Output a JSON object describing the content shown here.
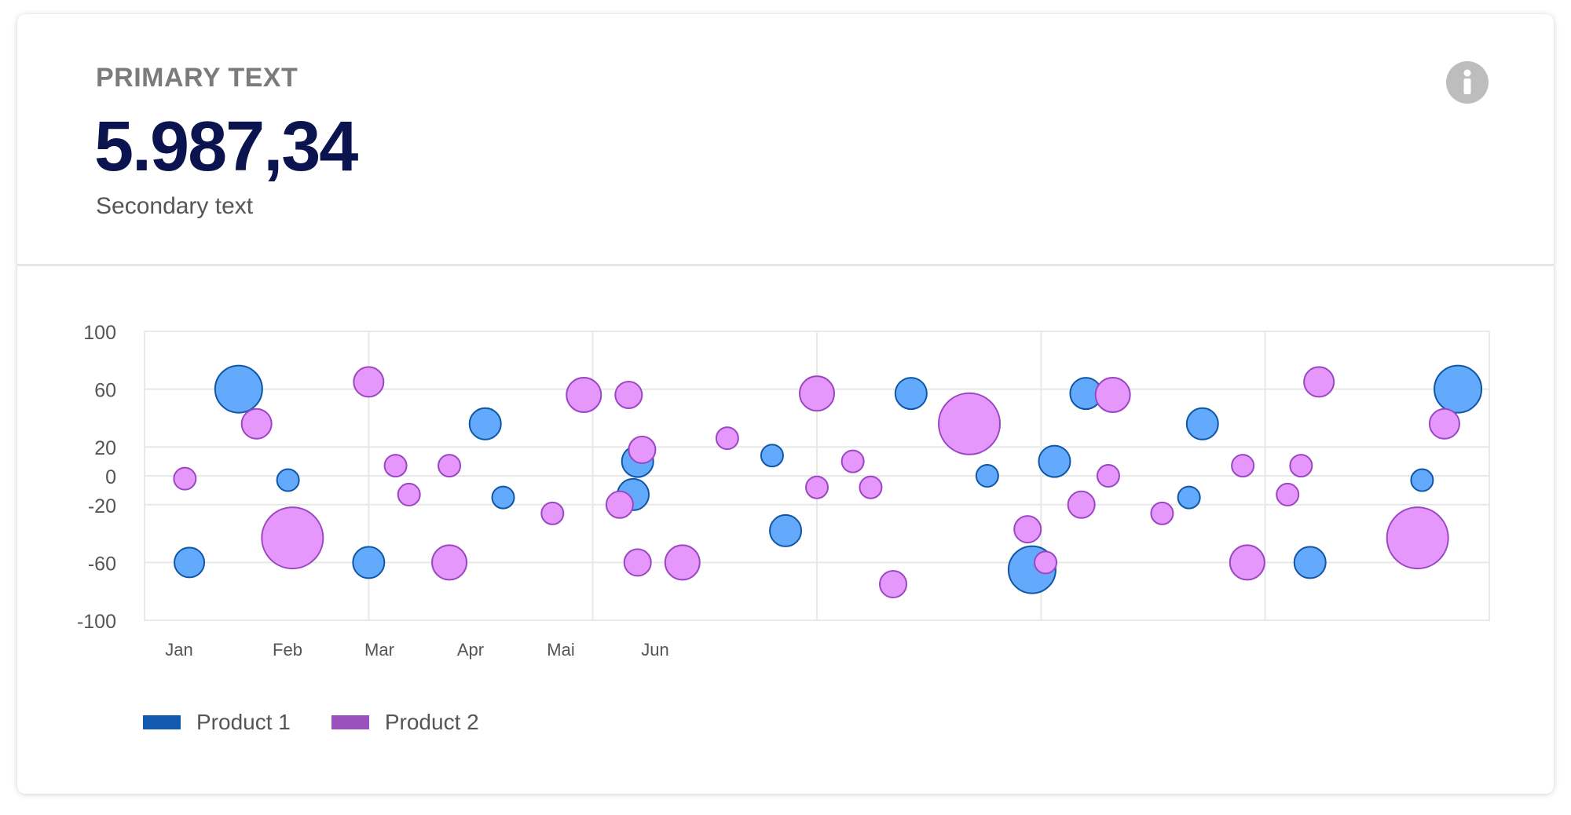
{
  "header": {
    "primary_text": "PRIMARY TEXT",
    "value": "5.987,34",
    "secondary_text": "Secondary text",
    "info_icon": "info-icon"
  },
  "colors": {
    "value_text": "#0c1450",
    "product1_fill": "#64aafc",
    "product1_stroke": "#0f56a6",
    "product1_legend": "#1259b0",
    "product2_fill": "#e597fc",
    "product2_stroke": "#9b47c4",
    "product2_legend": "#9a50bd",
    "grid": "#e8e8e8"
  },
  "chart_data": {
    "type": "scatter",
    "x_tick_labels": [
      "Jan",
      "Feb",
      "Mar",
      "Apr",
      "Mai",
      "Jun"
    ],
    "y_ticks": [
      100,
      60,
      20,
      0,
      -20,
      -60,
      -100
    ],
    "ylim": [
      -100,
      100
    ],
    "xlim": [
      0,
      30
    ],
    "grid": true,
    "legend_position": "bottom-left",
    "series": [
      {
        "name": "Product 1",
        "points": [
          {
            "x": 1.0,
            "y": -60,
            "r": 19
          },
          {
            "x": 2.1,
            "y": 60,
            "r": 30
          },
          {
            "x": 3.2,
            "y": -3,
            "r": 14
          },
          {
            "x": 5.0,
            "y": -60,
            "r": 20
          },
          {
            "x": 7.6,
            "y": 36,
            "r": 20
          },
          {
            "x": 8.0,
            "y": -15,
            "r": 14
          },
          {
            "x": 11.0,
            "y": 10,
            "r": 20
          },
          {
            "x": 10.9,
            "y": -13,
            "r": 20
          },
          {
            "x": 14.0,
            "y": 14,
            "r": 14
          },
          {
            "x": 14.3,
            "y": -38,
            "r": 20
          },
          {
            "x": 17.1,
            "y": 57,
            "r": 20
          },
          {
            "x": 18.8,
            "y": 0,
            "r": 14
          },
          {
            "x": 19.8,
            "y": -65,
            "r": 30
          },
          {
            "x": 20.3,
            "y": 10,
            "r": 20
          },
          {
            "x": 21.0,
            "y": 57,
            "r": 20
          },
          {
            "x": 23.3,
            "y": -15,
            "r": 14
          },
          {
            "x": 23.6,
            "y": 36,
            "r": 20
          },
          {
            "x": 26.0,
            "y": -60,
            "r": 20
          },
          {
            "x": 28.5,
            "y": -3,
            "r": 14
          },
          {
            "x": 29.3,
            "y": 60,
            "r": 30
          }
        ]
      },
      {
        "name": "Product 2",
        "points": [
          {
            "x": 0.9,
            "y": -2,
            "r": 14
          },
          {
            "x": 2.5,
            "y": 36,
            "r": 19
          },
          {
            "x": 3.3,
            "y": -43,
            "r": 39
          },
          {
            "x": 5.0,
            "y": 65,
            "r": 19
          },
          {
            "x": 5.6,
            "y": 7,
            "r": 14
          },
          {
            "x": 5.9,
            "y": -13,
            "r": 14
          },
          {
            "x": 6.8,
            "y": -60,
            "r": 22
          },
          {
            "x": 6.8,
            "y": 7,
            "r": 14
          },
          {
            "x": 9.1,
            "y": -26,
            "r": 14
          },
          {
            "x": 9.8,
            "y": 56,
            "r": 22
          },
          {
            "x": 10.6,
            "y": -20,
            "r": 17
          },
          {
            "x": 10.8,
            "y": 56,
            "r": 17
          },
          {
            "x": 11.1,
            "y": 18,
            "r": 17
          },
          {
            "x": 11.0,
            "y": -60,
            "r": 17
          },
          {
            "x": 12.0,
            "y": -60,
            "r": 22
          },
          {
            "x": 13.0,
            "y": 26,
            "r": 14
          },
          {
            "x": 15.0,
            "y": 57,
            "r": 22
          },
          {
            "x": 15.0,
            "y": -8,
            "r": 14
          },
          {
            "x": 15.8,
            "y": 10,
            "r": 14
          },
          {
            "x": 16.2,
            "y": -8,
            "r": 14
          },
          {
            "x": 16.7,
            "y": -75,
            "r": 17
          },
          {
            "x": 18.4,
            "y": 36,
            "r": 39
          },
          {
            "x": 19.7,
            "y": -37,
            "r": 17
          },
          {
            "x": 20.1,
            "y": -60,
            "r": 14
          },
          {
            "x": 20.9,
            "y": -20,
            "r": 17
          },
          {
            "x": 21.5,
            "y": 0,
            "r": 14
          },
          {
            "x": 21.6,
            "y": 56,
            "r": 22
          },
          {
            "x": 22.7,
            "y": -26,
            "r": 14
          },
          {
            "x": 24.5,
            "y": 7,
            "r": 14
          },
          {
            "x": 24.6,
            "y": -60,
            "r": 22
          },
          {
            "x": 25.5,
            "y": -13,
            "r": 14
          },
          {
            "x": 25.8,
            "y": 7,
            "r": 14
          },
          {
            "x": 26.2,
            "y": 65,
            "r": 19
          },
          {
            "x": 28.4,
            "y": -43,
            "r": 39
          },
          {
            "x": 29.0,
            "y": 36,
            "r": 19
          }
        ]
      }
    ]
  },
  "legend": {
    "items": [
      {
        "label": "Product 1"
      },
      {
        "label": "Product 2"
      }
    ]
  }
}
